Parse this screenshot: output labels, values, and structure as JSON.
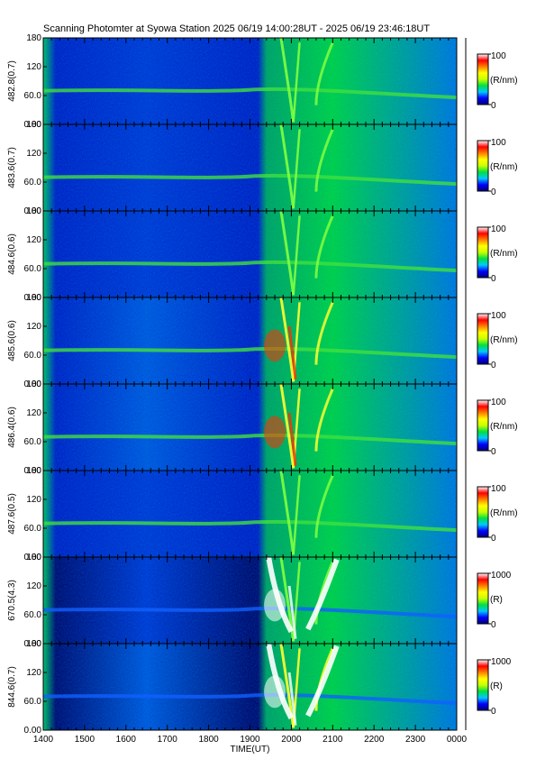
{
  "title": "Scanning Photomter at Syowa Station  2025 06/19 14:00:28UT - 2025 06/19 23:46:18UT",
  "chart_data": {
    "type": "heatmap",
    "xlabel": "TIME(UT)",
    "xlim": [
      1400,
      2400
    ],
    "x_ticks": [
      "1400",
      "1500",
      "1600",
      "1700",
      "1800",
      "1900",
      "2000",
      "2100",
      "2200",
      "2300",
      "0000"
    ],
    "y_ticks": [
      "0.00",
      "60.0",
      "120",
      "180"
    ],
    "ylim": [
      0,
      180
    ],
    "panels": [
      {
        "label": "482.8(0.7)",
        "unit": "(R/nm)",
        "cmax": "100",
        "cmin": "0",
        "intensity": 0.3
      },
      {
        "label": "483.6(0.7)",
        "unit": "(R/nm)",
        "cmax": "100",
        "cmin": "0",
        "intensity": 0.33
      },
      {
        "label": "484.6(0.6)",
        "unit": "(R/nm)",
        "cmax": "100",
        "cmin": "0",
        "intensity": 0.4
      },
      {
        "label": "485.6(0.6)",
        "unit": "(R/nm)",
        "cmax": "100",
        "cmin": "0",
        "intensity": 0.55
      },
      {
        "label": "486.4(0.6)",
        "unit": "(R/nm)",
        "cmax": "100",
        "cmin": "0",
        "intensity": 0.58
      },
      {
        "label": "487.6(0.5)",
        "unit": "(R/nm)",
        "cmax": "100",
        "cmin": "0",
        "intensity": 0.36
      },
      {
        "label": "670.5(4.3)",
        "unit": "(R)",
        "cmax": "1000",
        "cmin": "0",
        "intensity": 0.45
      },
      {
        "label": "844.6(0.7)",
        "unit": "(R)",
        "cmax": "1000",
        "cmin": "0",
        "intensity": 0.55
      }
    ],
    "colormap": [
      "#00007a",
      "#0000ff",
      "#00c8ff",
      "#00e040",
      "#c8ff00",
      "#ffff00",
      "#ff8000",
      "#ff0000",
      "#ffffff"
    ]
  }
}
